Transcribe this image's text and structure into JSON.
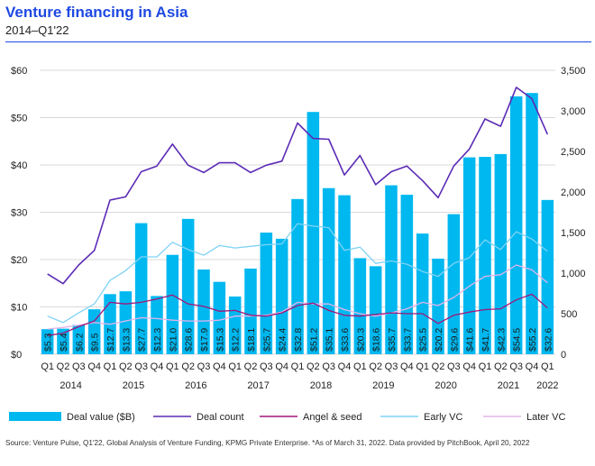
{
  "title": "Venture financing in Asia",
  "subtitle": "2014–Q1'22",
  "source": "Source: Venture Pulse, Q1'22, Global Analysis of Venture Funding, KPMG Private Enterprise. *As of March 31, 2022. Data provided by PitchBook, April 20, 2022",
  "colors": {
    "title": "#1e49e2",
    "deal_value": "#00b8f0",
    "deal_count": "#5b2bb5",
    "angel_seed": "#a0177a",
    "early_vc": "#7fd3f5",
    "later_vc": "#e3b5ea",
    "gridline": "#d9d9d9"
  },
  "chart_data": {
    "type": "bar",
    "categories": [
      "Q1",
      "Q2",
      "Q3",
      "Q4",
      "Q1",
      "Q2",
      "Q3",
      "Q4",
      "Q1",
      "Q2",
      "Q3",
      "Q4",
      "Q1",
      "Q2",
      "Q3",
      "Q4",
      "Q1",
      "Q2",
      "Q3",
      "Q4",
      "Q1",
      "Q2",
      "Q3",
      "Q4",
      "Q1",
      "Q2",
      "Q3",
      "Q4",
      "Q1",
      "Q2",
      "Q3",
      "Q4",
      "Q1"
    ],
    "year_labels": [
      "2014",
      "2015",
      "2016",
      "2017",
      "2018",
      "2019",
      "2020",
      "2021",
      "2022"
    ],
    "ylim_left": [
      0,
      60
    ],
    "yticks_left": [
      "$0",
      "$10",
      "$20",
      "$30",
      "$40",
      "$50",
      "$60"
    ],
    "ylim_right": [
      0,
      3500
    ],
    "yticks_right": [
      "0",
      "500",
      "1,000",
      "1,500",
      "2,000",
      "2,500",
      "3,000",
      "3,500"
    ],
    "grid": true,
    "legend_position": "bottom",
    "series": [
      {
        "name": "Deal value ($B)",
        "type": "bar",
        "axis": "left",
        "values": [
          5.3,
          5.4,
          6.2,
          9.5,
          12.7,
          13.3,
          27.7,
          12.3,
          21.0,
          28.6,
          17.9,
          15.3,
          12.2,
          18.1,
          25.7,
          24.4,
          32.8,
          51.2,
          35.1,
          33.6,
          20.3,
          18.6,
          35.7,
          33.7,
          25.5,
          20.2,
          29.6,
          41.6,
          41.7,
          42.3,
          54.5,
          55.2,
          32.6
        ],
        "labels": [
          "$5.3",
          "$5.4",
          "$6.2",
          "$9.5",
          "$12.7",
          "$13.3",
          "$27.7",
          "$12.3",
          "$21.0",
          "$28.6",
          "$17.9",
          "$15.3",
          "$12.2",
          "$18.1",
          "$25.7",
          "$24.4",
          "$32.8",
          "$51.2",
          "$35.1",
          "$33.6",
          "$20.3",
          "$18.6",
          "$35.7",
          "$33.7",
          "$25.5",
          "$20.2",
          "$29.6",
          "$41.6",
          "$41.7",
          "$42.3",
          "$54.5",
          "$55.2",
          "$32.6"
        ]
      },
      {
        "name": "Deal count",
        "type": "line",
        "axis": "right",
        "values": [
          990,
          870,
          1100,
          1280,
          1900,
          1940,
          2250,
          2320,
          2590,
          2330,
          2240,
          2360,
          2360,
          2240,
          2330,
          2380,
          2850,
          2660,
          2650,
          2210,
          2450,
          2090,
          2250,
          2320,
          2140,
          1930,
          2320,
          2530,
          2900,
          2810,
          3290,
          3150,
          2710
        ]
      },
      {
        "name": "Angel & seed",
        "type": "line",
        "axis": "right",
        "values": [
          230,
          260,
          340,
          410,
          640,
          620,
          640,
          680,
          730,
          620,
          590,
          530,
          540,
          480,
          470,
          510,
          600,
          630,
          540,
          480,
          470,
          490,
          510,
          500,
          500,
          380,
          480,
          520,
          550,
          560,
          670,
          740,
          570
        ]
      },
      {
        "name": "Early VC",
        "type": "line",
        "axis": "right",
        "values": [
          470,
          390,
          510,
          620,
          910,
          1030,
          1200,
          1200,
          1380,
          1290,
          1220,
          1340,
          1310,
          1330,
          1350,
          1360,
          1610,
          1580,
          1560,
          1280,
          1320,
          1120,
          1150,
          1110,
          1020,
          960,
          1120,
          1190,
          1410,
          1290,
          1510,
          1420,
          1270
        ]
      },
      {
        "name": "Later VC",
        "type": "line",
        "axis": "right",
        "values": [
          310,
          330,
          360,
          390,
          370,
          410,
          450,
          440,
          420,
          410,
          410,
          420,
          470,
          470,
          480,
          520,
          640,
          620,
          620,
          550,
          500,
          470,
          510,
          560,
          640,
          600,
          700,
          840,
          960,
          980,
          1100,
          1040,
          880
        ]
      }
    ]
  }
}
